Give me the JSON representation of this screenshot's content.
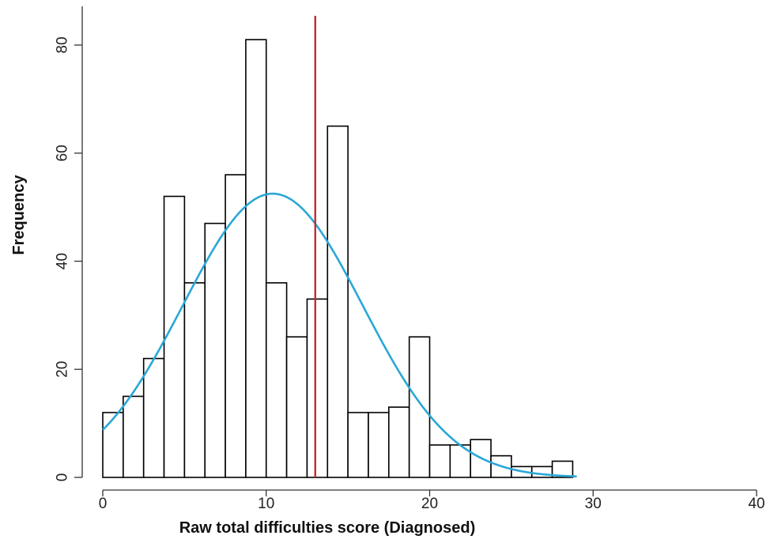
{
  "chart_data": {
    "type": "bar",
    "xlabel": "Raw total difficulties score (Diagnosed)",
    "ylabel": "Frequency",
    "xlim": [
      0,
      40
    ],
    "ylim": [
      0,
      80
    ],
    "xticks": [
      0,
      10,
      20,
      30,
      40
    ],
    "yticks": [
      0,
      20,
      40,
      60,
      80
    ],
    "bin_width": 1.25,
    "bins": [
      {
        "x0": 0,
        "x1": 1.25,
        "count": 12
      },
      {
        "x0": 1.25,
        "x1": 2.5,
        "count": 15
      },
      {
        "x0": 2.5,
        "x1": 3.75,
        "count": 22
      },
      {
        "x0": 3.75,
        "x1": 5,
        "count": 52
      },
      {
        "x0": 5,
        "x1": 6.25,
        "count": 36
      },
      {
        "x0": 6.25,
        "x1": 7.5,
        "count": 47
      },
      {
        "x0": 7.5,
        "x1": 8.75,
        "count": 56
      },
      {
        "x0": 8.75,
        "x1": 10,
        "count": 81
      },
      {
        "x0": 10,
        "x1": 11.25,
        "count": 36
      },
      {
        "x0": 11.25,
        "x1": 12.5,
        "count": 26
      },
      {
        "x0": 12.5,
        "x1": 13.75,
        "count": 33
      },
      {
        "x0": 13.75,
        "x1": 15,
        "count": 65
      },
      {
        "x0": 15,
        "x1": 16.25,
        "count": 12
      },
      {
        "x0": 16.25,
        "x1": 17.5,
        "count": 12
      },
      {
        "x0": 17.5,
        "x1": 18.75,
        "count": 13
      },
      {
        "x0": 18.75,
        "x1": 20,
        "count": 26
      },
      {
        "x0": 20,
        "x1": 21.25,
        "count": 6
      },
      {
        "x0": 21.25,
        "x1": 22.5,
        "count": 6
      },
      {
        "x0": 22.5,
        "x1": 23.75,
        "count": 7
      },
      {
        "x0": 23.75,
        "x1": 25,
        "count": 4
      },
      {
        "x0": 25,
        "x1": 26.25,
        "count": 2
      },
      {
        "x0": 26.25,
        "x1": 27.5,
        "count": 2
      },
      {
        "x0": 27.5,
        "x1": 28.75,
        "count": 3
      }
    ],
    "fit_curve": {
      "type": "normal",
      "mean": 10.4,
      "peak": 52.5,
      "sd": 5.5,
      "x_range": [
        0,
        29
      ],
      "color": "#2aa7d6"
    },
    "reference_line": {
      "x": 13,
      "color": "#c8282d"
    },
    "grid": false
  }
}
